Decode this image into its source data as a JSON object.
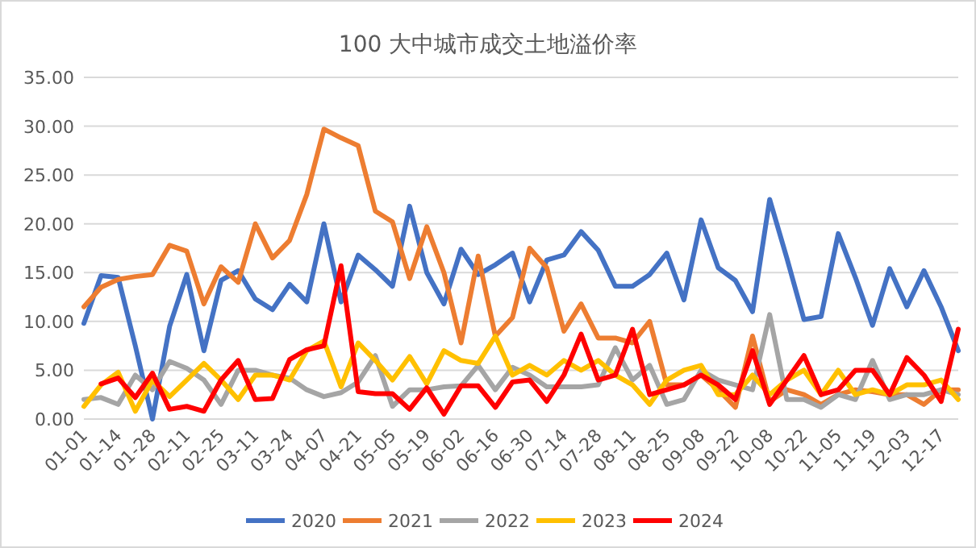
{
  "chart_data": {
    "type": "line",
    "title": "100 大中城市成交土地溢价率",
    "categories": [
      "01-01",
      null,
      "01-14",
      null,
      "01-28",
      null,
      "02-11",
      null,
      "02-25",
      null,
      "03-11",
      null,
      "03-24",
      null,
      "04-07",
      null,
      "04-21",
      null,
      "05-05",
      null,
      "05-19",
      null,
      "06-02",
      null,
      "06-16",
      null,
      "06-30",
      null,
      "07-14",
      null,
      "07-28",
      null,
      "08-11",
      null,
      "08-25",
      null,
      "09-08",
      null,
      "09-22",
      null,
      "10-08",
      null,
      "10-22",
      null,
      "11-05",
      null,
      "11-19",
      null,
      "12-03",
      null,
      "12-17",
      null
    ],
    "series": [
      {
        "name": "2020",
        "color": "#4472c4",
        "values": [
          9.8,
          14.7,
          14.5,
          7.5,
          0,
          9.5,
          14.8,
          7,
          14.2,
          15.2,
          12.3,
          11.2,
          13.8,
          12,
          20,
          12,
          16.8,
          15.3,
          13.6,
          21.8,
          15,
          11.8,
          17.4,
          14.8,
          15.8,
          17,
          12,
          16.3,
          16.8,
          19.2,
          17.3,
          13.6,
          13.6,
          14.8,
          17,
          12.2,
          20.4,
          15.5,
          14.2,
          11,
          22.5,
          16.5,
          10.2,
          10.5,
          19,
          14.5,
          9.6,
          15.4,
          11.5,
          15.2,
          11.5,
          7
        ]
      },
      {
        "name": "2021",
        "color": "#ed7d31",
        "values": [
          11.5,
          13.5,
          14.3,
          14.6,
          14.8,
          17.8,
          17.2,
          11.8,
          15.6,
          14,
          20,
          16.5,
          18.3,
          23,
          29.7,
          28.8,
          28,
          21.3,
          20.2,
          14.4,
          19.7,
          15,
          7.8,
          16.7,
          8.5,
          10.4,
          17.5,
          15.5,
          9,
          11.8,
          8.3,
          8.3,
          7.8,
          10,
          3.5,
          3.5,
          4.5,
          3,
          1.2,
          8.5,
          1.8,
          3,
          2.5,
          1.5,
          2.5,
          3,
          2.8,
          2.5,
          2.5,
          1.5,
          3,
          3
        ]
      },
      {
        "name": "2022",
        "color": "#a5a5a5",
        "values": [
          2,
          2.2,
          1.5,
          4.5,
          3,
          5.9,
          5.2,
          4,
          1.5,
          5,
          5,
          4.5,
          4.2,
          3,
          2.3,
          2.7,
          3.8,
          6.5,
          1.3,
          3,
          3,
          3.3,
          3.4,
          5.5,
          3,
          5.3,
          4.5,
          3.3,
          3.3,
          3.3,
          3.5,
          7.3,
          4,
          5.5,
          1.5,
          2,
          5,
          4,
          3.5,
          3,
          10.7,
          2,
          2,
          1.2,
          2.5,
          2,
          6,
          2,
          2.5,
          2.5,
          3,
          2.5
        ]
      },
      {
        "name": "2023",
        "color": "#ffc000",
        "values": [
          1.3,
          3.5,
          4.8,
          0.8,
          4,
          2.3,
          4,
          5.7,
          4,
          2,
          4.5,
          4.5,
          4,
          7,
          8,
          3.3,
          7.8,
          6,
          4,
          6.4,
          3.6,
          7,
          6,
          5.7,
          8.5,
          4.5,
          5.5,
          4.5,
          6,
          5,
          6,
          4.5,
          3.5,
          1.5,
          4,
          5,
          5.5,
          2.5,
          2.5,
          4.5,
          2.5,
          4,
          5,
          2.5,
          5,
          2.5,
          3,
          2.5,
          3.5,
          3.5,
          4,
          2
        ]
      },
      {
        "name": "2024",
        "color": "#ff0000",
        "values": [
          null,
          3.6,
          4.2,
          2.2,
          4.7,
          1,
          1.3,
          0.8,
          4,
          6,
          2,
          2.1,
          6.1,
          7.1,
          7.5,
          15.7,
          2.8,
          2.6,
          2.6,
          1,
          3.2,
          0.5,
          3.4,
          3.4,
          1.2,
          3.8,
          4,
          1.8,
          4.5,
          8.7,
          4,
          4.5,
          9.2,
          2.5,
          3,
          3.5,
          4.5,
          3.5,
          2,
          7,
          1.5,
          4,
          6.5,
          2.5,
          3,
          5,
          5,
          2.5,
          6.3,
          4.5,
          1.8,
          9.2
        ]
      }
    ],
    "ylim": [
      0,
      35
    ],
    "yticks": [
      {
        "value": 0,
        "label": "0.00"
      },
      {
        "value": 5,
        "label": "5.00"
      },
      {
        "value": 10,
        "label": "10.00"
      },
      {
        "value": 15,
        "label": "15.00"
      },
      {
        "value": 20,
        "label": "20.00"
      },
      {
        "value": 25,
        "label": "25.00"
      },
      {
        "value": 30,
        "label": "30.00"
      },
      {
        "value": 35,
        "label": "35.00"
      }
    ],
    "grid": "y",
    "legend": "bottom"
  }
}
